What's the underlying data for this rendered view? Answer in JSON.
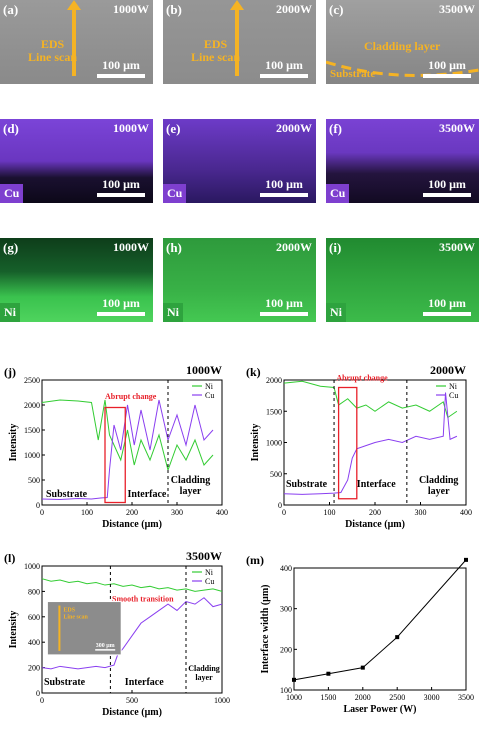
{
  "sem_panels": [
    {
      "label": "(a)",
      "power": "1000W",
      "scale": "100 μm",
      "eds_label": "EDS\nLine scan"
    },
    {
      "label": "(b)",
      "power": "2000W",
      "scale": "100 μm",
      "eds_label": "EDS\nLine scan"
    },
    {
      "label": "(c)",
      "power": "3500W",
      "scale": "100 μm",
      "cladding_label": "Cladding layer",
      "substrate_label": "Substrate"
    }
  ],
  "cu_panels": [
    {
      "label": "(d)",
      "power": "1000W",
      "scale": "100 μm",
      "element": "Cu"
    },
    {
      "label": "(e)",
      "power": "2000W",
      "scale": "100 μm",
      "element": "Cu"
    },
    {
      "label": "(f)",
      "power": "3500W",
      "scale": "100 μm",
      "element": "Cu"
    }
  ],
  "ni_panels": [
    {
      "label": "(g)",
      "power": "1000W",
      "scale": "100 μm",
      "element": "Ni"
    },
    {
      "label": "(h)",
      "power": "2000W",
      "scale": "100 μm",
      "element": "Ni"
    },
    {
      "label": "(i)",
      "power": "3500W",
      "scale": "100 μm",
      "element": "Ni"
    }
  ],
  "colors": {
    "cu": "#8a3ff0",
    "ni": "#33cc33",
    "anno_red": "#e8202a",
    "accent": "#f5b324"
  },
  "chart_data": [
    {
      "id": "j",
      "type": "line",
      "panel_label": "(j)",
      "title": "1000W",
      "xlabel": "Distance (μm)",
      "ylabel": "Intensity",
      "xlim": [
        0,
        400
      ],
      "ylim": [
        0,
        2500
      ],
      "xticks": [
        0,
        100,
        200,
        300,
        400
      ],
      "yticks": [
        0,
        500,
        1000,
        1500,
        2000,
        2500
      ],
      "series": [
        {
          "name": "Ni",
          "x": [
            0,
            40,
            80,
            110,
            125,
            140,
            150,
            160,
            175,
            190,
            205,
            220,
            240,
            260,
            280,
            300,
            320,
            340,
            360,
            380
          ],
          "y": [
            2050,
            2100,
            2080,
            2050,
            1300,
            2100,
            1400,
            1200,
            900,
            1500,
            800,
            1300,
            900,
            1400,
            700,
            1200,
            900,
            1300,
            800,
            1000
          ]
        },
        {
          "name": "Cu",
          "x": [
            0,
            40,
            80,
            110,
            130,
            145,
            150,
            160,
            175,
            190,
            205,
            220,
            240,
            260,
            280,
            300,
            320,
            340,
            360,
            380
          ],
          "y": [
            120,
            110,
            130,
            120,
            140,
            150,
            700,
            1600,
            1100,
            2000,
            1200,
            1900,
            1100,
            2100,
            1300,
            1800,
            1200,
            2000,
            1300,
            1500
          ]
        }
      ],
      "annotations": [
        "Abrupt change",
        "Substrate",
        "Interface",
        "Cladding\nlayer"
      ]
    },
    {
      "id": "k",
      "type": "line",
      "panel_label": "(k)",
      "title": "2000W",
      "xlabel": "Distance (μm)",
      "ylabel": "Intensity",
      "xlim": [
        0,
        400
      ],
      "ylim": [
        0,
        2000
      ],
      "xticks": [
        0,
        100,
        200,
        300,
        400
      ],
      "yticks": [
        0,
        500,
        1000,
        1500,
        2000
      ],
      "series": [
        {
          "name": "Ni",
          "x": [
            0,
            40,
            80,
            110,
            120,
            140,
            160,
            180,
            200,
            230,
            260,
            290,
            320,
            350,
            360,
            380
          ],
          "y": [
            1950,
            1980,
            1900,
            1880,
            1600,
            1700,
            1550,
            1600,
            1500,
            1650,
            1550,
            1600,
            1500,
            1650,
            1400,
            1500
          ]
        },
        {
          "name": "Cu",
          "x": [
            0,
            40,
            80,
            110,
            125,
            140,
            150,
            160,
            180,
            200,
            230,
            260,
            290,
            320,
            350,
            355,
            365,
            380
          ],
          "y": [
            180,
            170,
            180,
            190,
            200,
            400,
            750,
            900,
            950,
            1000,
            1050,
            1000,
            1100,
            1050,
            1100,
            1800,
            1050,
            1100
          ]
        }
      ],
      "annotations": [
        "Abrupt change",
        "Substrate",
        "Interface",
        "Cladding\nlayer"
      ]
    },
    {
      "id": "l",
      "type": "line",
      "panel_label": "(l)",
      "title": "3500W",
      "xlabel": "Distance (μm)",
      "ylabel": "Intensity",
      "xlim": [
        0,
        1000
      ],
      "ylim": [
        0,
        1000
      ],
      "xticks": [
        0,
        500,
        1000
      ],
      "yticks": [
        0,
        200,
        400,
        600,
        800,
        1000
      ],
      "series": [
        {
          "name": "Ni",
          "x": [
            0,
            50,
            100,
            150,
            200,
            250,
            300,
            350,
            400,
            450,
            500,
            550,
            600,
            650,
            700,
            750,
            800,
            850,
            900,
            950,
            1000
          ],
          "y": [
            900,
            880,
            890,
            870,
            880,
            860,
            870,
            850,
            860,
            840,
            850,
            830,
            840,
            820,
            830,
            810,
            820,
            800,
            810,
            820,
            800
          ]
        },
        {
          "name": "Cu",
          "x": [
            0,
            50,
            100,
            150,
            200,
            250,
            300,
            350,
            400,
            420,
            450,
            500,
            550,
            600,
            650,
            700,
            750,
            800,
            850,
            900,
            950,
            1000
          ],
          "y": [
            200,
            190,
            210,
            200,
            190,
            200,
            210,
            200,
            220,
            300,
            350,
            450,
            550,
            600,
            650,
            700,
            650,
            720,
            700,
            750,
            680,
            700
          ]
        }
      ],
      "annotations": [
        "Smooth transition",
        "Substrate",
        "Interface",
        "Cladding\nlayer"
      ],
      "inset": {
        "eds_label": "EDS\nLine scan",
        "scale": "300 μm"
      }
    },
    {
      "id": "m",
      "type": "line",
      "panel_label": "(m)",
      "xlabel": "Laser Power (W)",
      "ylabel": "Interface width (μm)",
      "xlim": [
        1000,
        3500
      ],
      "ylim": [
        100,
        400
      ],
      "xticks": [
        1000,
        1500,
        2000,
        2500,
        3000,
        3500
      ],
      "yticks": [
        100,
        200,
        300,
        400
      ],
      "series": [
        {
          "name": "",
          "x": [
            1000,
            1500,
            2000,
            2500,
            3500
          ],
          "y": [
            125,
            140,
            155,
            230,
            420
          ]
        }
      ]
    }
  ]
}
